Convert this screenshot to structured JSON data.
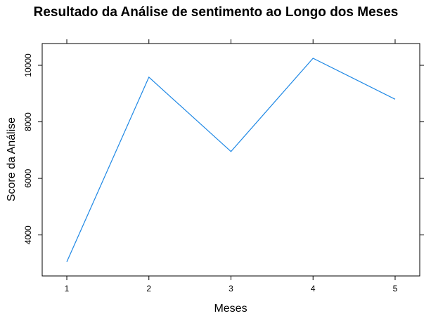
{
  "chart_data": {
    "type": "line",
    "title": "Resultado da Análise de sentimento ao Longo dos Meses",
    "xlabel": "Meses",
    "ylabel": "Score da Análise",
    "x": [
      1,
      2,
      3,
      4,
      5
    ],
    "series": [
      {
        "values": [
          3050,
          9580,
          6950,
          10250,
          8800
        ]
      }
    ],
    "xlim": [
      0.7,
      5.3
    ],
    "ylim": [
      2550,
      10770
    ],
    "xticks": [
      "1",
      "2",
      "3",
      "4",
      "5"
    ],
    "yticks": [
      "4000",
      "6000",
      "8000",
      "10000"
    ],
    "grid": false,
    "colors": {
      "line": "#1e88e5",
      "frame": "#000000"
    }
  }
}
